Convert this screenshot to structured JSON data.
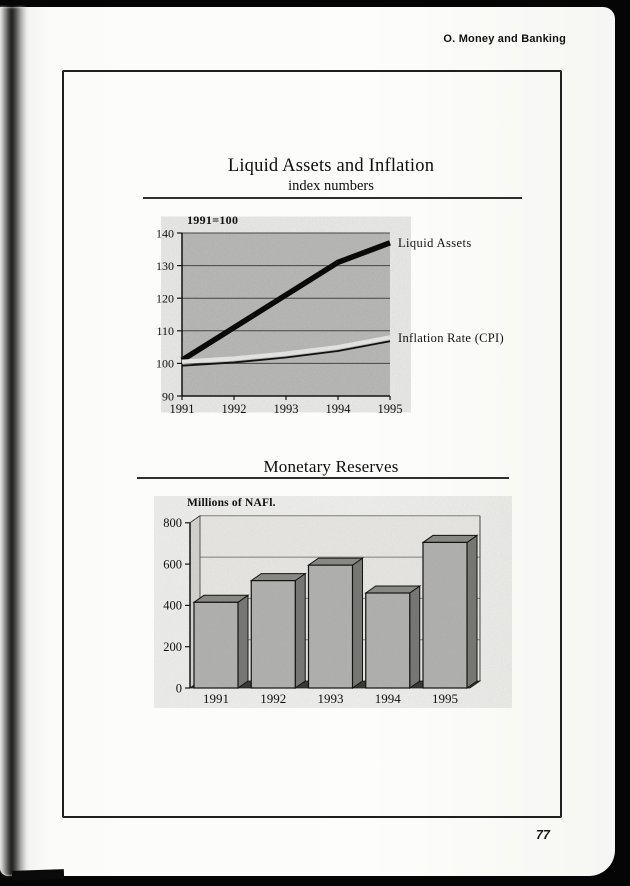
{
  "page": {
    "header": "O. Money and Banking",
    "page_number": "77"
  },
  "chart_data": [
    {
      "type": "line",
      "title": "Liquid Assets and Inflation",
      "subtitle": "index numbers",
      "axis_note": "1991=100",
      "x": [
        1991,
        1992,
        1993,
        1994,
        1995
      ],
      "y_ticks": [
        90,
        100,
        110,
        120,
        130,
        140
      ],
      "ylim": [
        90,
        140
      ],
      "grid": true,
      "legend_position": "right",
      "plot_bg": "#c8c8c6",
      "series": [
        {
          "name": "Liquid Assets",
          "values": [
            101,
            111,
            121,
            131,
            137
          ],
          "style": "thick-black",
          "color": "#0b0b0b"
        },
        {
          "name": "Inflation Rate (CPI)",
          "values": [
            100.5,
            101.5,
            103,
            105,
            108
          ],
          "style": "white-with-black-edge",
          "color": "#fafafa",
          "edge_color": "#141414"
        }
      ]
    },
    {
      "type": "bar",
      "title": "Monetary Reserves",
      "ylabel": "Millions of NAFl.",
      "categories": [
        "1991",
        "1992",
        "1993",
        "1994",
        "1995"
      ],
      "values": [
        415,
        520,
        595,
        460,
        705
      ],
      "y_ticks": [
        0,
        200,
        400,
        600,
        800
      ],
      "ylim": [
        0,
        800
      ],
      "style": "3d-gray",
      "bar_colors": {
        "front": "#bdbdbb",
        "top": "#93938f",
        "side": "#80807c",
        "floor": "#3e3e3a"
      }
    }
  ]
}
